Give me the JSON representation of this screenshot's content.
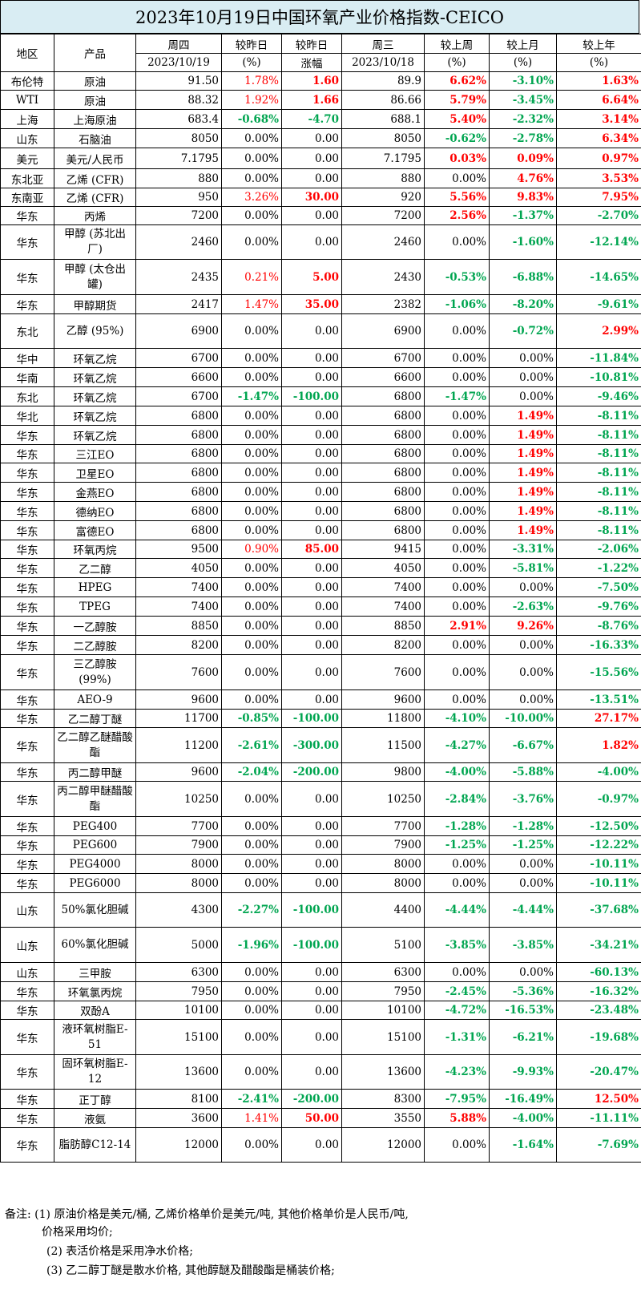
{
  "title": "2023年10月19日中国环氧产业价格指数-CEICO",
  "header": {
    "region": "地区",
    "product": "产品",
    "thu": "周四",
    "thu_date": "2023/10/19",
    "chg_pct": "较昨日",
    "chg_pct_unit": "(%)",
    "chg_abs": "较昨日",
    "chg_abs_unit": "涨幅",
    "wed": "周三",
    "wed_date": "2023/10/18",
    "week": "较上周",
    "week_unit": "(%)",
    "month": "较上月",
    "month_unit": "(%)",
    "year": "较上年",
    "year_unit": "(%)"
  },
  "rows": [
    {
      "region": "布伦特",
      "product": "原油",
      "thu": "91.50",
      "d_pct": "1.78%",
      "d_abs": "1.60",
      "wed": "89.9",
      "w": "6.62%",
      "m": "-3.10%",
      "y": "1.63%",
      "h": 23
    },
    {
      "region": "WTI",
      "product": "原油",
      "thu": "88.32",
      "d_pct": "1.92%",
      "d_abs": "1.66",
      "wed": "86.66",
      "w": "5.79%",
      "m": "-3.45%",
      "y": "6.64%",
      "h": 24
    },
    {
      "region": "上海",
      "product": "上海原油",
      "thu": "683.4",
      "d_pct": "-0.68%",
      "d_abs": "-4.70",
      "wed": "688.1",
      "w": "5.40%",
      "m": "-2.32%",
      "y": "3.14%",
      "h": 24
    },
    {
      "region": "山东",
      "product": "石脑油",
      "thu": "8050",
      "d_pct": "0.00%",
      "d_abs": "0.00",
      "wed": "8050",
      "w": "-0.62%",
      "m": "-2.78%",
      "y": "6.34%",
      "h": 24
    },
    {
      "region": "美元",
      "product": "美元/人民币",
      "thu": "7.1795",
      "d_pct": "0.00%",
      "d_abs": "0.00",
      "wed": "7.1795",
      "w": "0.03%",
      "m": "0.09%",
      "y": "0.97%",
      "h": 26
    },
    {
      "region": "东北亚",
      "product": "乙烯 (CFR)",
      "thu": "880",
      "d_pct": "0.00%",
      "d_abs": "0.00",
      "wed": "880",
      "w": "0.00%",
      "m": "4.76%",
      "y": "3.53%",
      "h": 24
    },
    {
      "region": "东南亚",
      "product": "乙烯 (CFR)",
      "thu": "950",
      "d_pct": "3.26%",
      "d_abs": "30.00",
      "wed": "920",
      "w": "5.56%",
      "m": "9.83%",
      "y": "7.95%",
      "h": 23
    },
    {
      "region": "华东",
      "product": "丙烯",
      "thu": "7200",
      "d_pct": "0.00%",
      "d_abs": "0.00",
      "wed": "7200",
      "w": "2.56%",
      "m": "-1.37%",
      "y": "-2.70%",
      "h": 23
    },
    {
      "region": "华东",
      "product": "甲醇 (苏北出厂)",
      "thu": "2460",
      "d_pct": "0.00%",
      "d_abs": "0.00",
      "wed": "2460",
      "w": "0.00%",
      "m": "-1.60%",
      "y": "-12.14%",
      "h": 43
    },
    {
      "region": "华东",
      "product": "甲醇 (太仓出罐)",
      "thu": "2435",
      "d_pct": "0.21%",
      "d_abs": "5.00",
      "wed": "2430",
      "w": "-0.53%",
      "m": "-6.88%",
      "y": "-14.65%",
      "h": 44
    },
    {
      "region": "华东",
      "product": "甲醇期货",
      "thu": "2417",
      "d_pct": "1.47%",
      "d_abs": "35.00",
      "wed": "2382",
      "w": "-1.06%",
      "m": "-8.20%",
      "y": "-9.61%",
      "h": 24
    },
    {
      "region": "东北",
      "product": "乙醇 (95%)",
      "thu": "6900",
      "d_pct": "0.00%",
      "d_abs": "0.00",
      "wed": "6900",
      "w": "0.00%",
      "m": "-0.72%",
      "y": "2.99%",
      "h": 43
    },
    {
      "region": "华中",
      "product": "环氧乙烷",
      "thu": "6700",
      "d_pct": "0.00%",
      "d_abs": "0.00",
      "wed": "6700",
      "w": "0.00%",
      "m": "0.00%",
      "y": "-11.84%",
      "h": 24
    },
    {
      "region": "华南",
      "product": "环氧乙烷",
      "thu": "6600",
      "d_pct": "0.00%",
      "d_abs": "0.00",
      "wed": "6600",
      "w": "0.00%",
      "m": "0.00%",
      "y": "-10.81%",
      "h": 24
    },
    {
      "region": "东北",
      "product": "环氧乙烷",
      "thu": "6700",
      "d_pct": "-1.47%",
      "d_abs": "-100.00",
      "wed": "6800",
      "w": "-1.47%",
      "m": "0.00%",
      "y": "-9.46%",
      "h": 24
    },
    {
      "region": "华北",
      "product": "环氧乙烷",
      "thu": "6800",
      "d_pct": "0.00%",
      "d_abs": "0.00",
      "wed": "6800",
      "w": "0.00%",
      "m": "1.49%",
      "y": "-8.11%",
      "h": 24
    },
    {
      "region": "华东",
      "product": "环氧乙烷",
      "thu": "6800",
      "d_pct": "0.00%",
      "d_abs": "0.00",
      "wed": "6800",
      "w": "0.00%",
      "m": "1.49%",
      "y": "-8.11%",
      "h": 24
    },
    {
      "region": "华东",
      "product": "三江EO",
      "thu": "6800",
      "d_pct": "0.00%",
      "d_abs": "0.00",
      "wed": "6800",
      "w": "0.00%",
      "m": "1.49%",
      "y": "-8.11%",
      "h": 23
    },
    {
      "region": "华东",
      "product": "卫星EO",
      "thu": "6800",
      "d_pct": "0.00%",
      "d_abs": "0.00",
      "wed": "6800",
      "w": "0.00%",
      "m": "1.49%",
      "y": "-8.11%",
      "h": 24
    },
    {
      "region": "华东",
      "product": "金燕EO",
      "thu": "6800",
      "d_pct": "0.00%",
      "d_abs": "0.00",
      "wed": "6800",
      "w": "0.00%",
      "m": "1.49%",
      "y": "-8.11%",
      "h": 24
    },
    {
      "region": "华东",
      "product": "德纳EO",
      "thu": "6800",
      "d_pct": "0.00%",
      "d_abs": "0.00",
      "wed": "6800",
      "w": "0.00%",
      "m": "1.49%",
      "y": "-8.11%",
      "h": 24
    },
    {
      "region": "华东",
      "product": "富德EO",
      "thu": "6800",
      "d_pct": "0.00%",
      "d_abs": "0.00",
      "wed": "6800",
      "w": "0.00%",
      "m": "1.49%",
      "y": "-8.11%",
      "h": 24
    },
    {
      "region": "华东",
      "product": "环氧丙烷",
      "thu": "9500",
      "d_pct": "0.90%",
      "d_abs": "85.00",
      "wed": "9415",
      "w": "0.00%",
      "m": "-3.31%",
      "y": "-2.06%",
      "h": 23
    },
    {
      "region": "华东",
      "product": "乙二醇",
      "thu": "4050",
      "d_pct": "0.00%",
      "d_abs": "0.00",
      "wed": "4050",
      "w": "0.00%",
      "m": "-5.81%",
      "y": "-1.22%",
      "h": 24
    },
    {
      "region": "华东",
      "product": "HPEG",
      "thu": "7400",
      "d_pct": "0.00%",
      "d_abs": "0.00",
      "wed": "7400",
      "w": "0.00%",
      "m": "0.00%",
      "y": "-7.50%",
      "h": 24
    },
    {
      "region": "华东",
      "product": "TPEG",
      "thu": "7400",
      "d_pct": "0.00%",
      "d_abs": "0.00",
      "wed": "7400",
      "w": "0.00%",
      "m": "-2.63%",
      "y": "-9.76%",
      "h": 24
    },
    {
      "region": "华东",
      "product": "一乙醇胺",
      "thu": "8850",
      "d_pct": "0.00%",
      "d_abs": "0.00",
      "wed": "8850",
      "w": "2.91%",
      "m": "9.26%",
      "y": "-8.76%",
      "h": 24
    },
    {
      "region": "华东",
      "product": "二乙醇胺",
      "thu": "8200",
      "d_pct": "0.00%",
      "d_abs": "0.00",
      "wed": "8200",
      "w": "0.00%",
      "m": "0.00%",
      "y": "-16.33%",
      "h": 24
    },
    {
      "region": "华东",
      "product": "三乙醇胺 (99%)",
      "thu": "7600",
      "d_pct": "0.00%",
      "d_abs": "0.00",
      "wed": "7600",
      "w": "0.00%",
      "m": "0.00%",
      "y": "-15.56%",
      "h": 44
    },
    {
      "region": "华东",
      "product": "AEO-9",
      "thu": "9600",
      "d_pct": "0.00%",
      "d_abs": "0.00",
      "wed": "9600",
      "w": "0.00%",
      "m": "0.00%",
      "y": "-13.51%",
      "h": 24
    },
    {
      "region": "华东",
      "product": "乙二醇丁醚",
      "thu": "11700",
      "d_pct": "-0.85%",
      "d_abs": "-100.00",
      "wed": "11800",
      "w": "-4.10%",
      "m": "-10.00%",
      "y": "27.17%",
      "h": 23
    },
    {
      "region": "华东",
      "product": "乙二醇乙醚醋酸酯",
      "thu": "11200",
      "d_pct": "-2.61%",
      "d_abs": "-300.00",
      "wed": "11500",
      "w": "-4.27%",
      "m": "-6.67%",
      "y": "1.82%",
      "h": 44
    },
    {
      "region": "华东",
      "product": "丙二醇甲醚",
      "thu": "9600",
      "d_pct": "-2.04%",
      "d_abs": "-200.00",
      "wed": "9800",
      "w": "-4.00%",
      "m": "-5.88%",
      "y": "-4.00%",
      "h": 23
    },
    {
      "region": "华东",
      "product": "丙二醇甲醚醋酸酯",
      "thu": "10250",
      "d_pct": "0.00%",
      "d_abs": "0.00",
      "wed": "10250",
      "w": "-2.84%",
      "m": "-3.76%",
      "y": "-0.97%",
      "h": 44
    },
    {
      "region": "华东",
      "product": "PEG400",
      "thu": "7700",
      "d_pct": "0.00%",
      "d_abs": "0.00",
      "wed": "7700",
      "w": "-1.28%",
      "m": "-1.28%",
      "y": "-12.50%",
      "h": 24
    },
    {
      "region": "华东",
      "product": "PEG600",
      "thu": "7900",
      "d_pct": "0.00%",
      "d_abs": "0.00",
      "wed": "7900",
      "w": "-1.25%",
      "m": "-1.25%",
      "y": "-12.22%",
      "h": 23
    },
    {
      "region": "华东",
      "product": "PEG4000",
      "thu": "8000",
      "d_pct": "0.00%",
      "d_abs": "0.00",
      "wed": "8000",
      "w": "0.00%",
      "m": "0.00%",
      "y": "-10.11%",
      "h": 24
    },
    {
      "region": "华东",
      "product": "PEG6000",
      "thu": "8000",
      "d_pct": "0.00%",
      "d_abs": "0.00",
      "wed": "8000",
      "w": "0.00%",
      "m": "0.00%",
      "y": "-10.11%",
      "h": 24
    },
    {
      "region": "山东",
      "product": "50%氯化胆碱",
      "thu": "4300",
      "d_pct": "-2.27%",
      "d_abs": "-100.00",
      "wed": "4400",
      "w": "-4.44%",
      "m": "-4.44%",
      "y": "-37.68%",
      "h": 43
    },
    {
      "region": "山东",
      "product": "60%氯化胆碱",
      "thu": "5000",
      "d_pct": "-1.96%",
      "d_abs": "-100.00",
      "wed": "5100",
      "w": "-3.85%",
      "m": "-3.85%",
      "y": "-34.21%",
      "h": 44
    },
    {
      "region": "山东",
      "product": "三甲胺",
      "thu": "6300",
      "d_pct": "0.00%",
      "d_abs": "0.00",
      "wed": "6300",
      "w": "0.00%",
      "m": "0.00%",
      "y": "-60.13%",
      "h": 24
    },
    {
      "region": "华东",
      "product": "环氧氯丙烷",
      "thu": "7950",
      "d_pct": "0.00%",
      "d_abs": "0.00",
      "wed": "7950",
      "w": "-2.45%",
      "m": "-5.36%",
      "y": "-16.32%",
      "h": 24
    },
    {
      "region": "华东",
      "product": "双酚A",
      "thu": "10100",
      "d_pct": "0.00%",
      "d_abs": "0.00",
      "wed": "10100",
      "w": "-4.72%",
      "m": "-16.53%",
      "y": "-23.48%",
      "h": 23
    },
    {
      "region": "华东",
      "product": "液环氧树脂E-51",
      "thu": "15100",
      "d_pct": "0.00%",
      "d_abs": "0.00",
      "wed": "15100",
      "w": "-1.31%",
      "m": "-6.21%",
      "y": "-19.68%",
      "h": 44
    },
    {
      "region": "华东",
      "product": "固环氧树脂E-12",
      "thu": "13600",
      "d_pct": "0.00%",
      "d_abs": "0.00",
      "wed": "13600",
      "w": "-4.23%",
      "m": "-9.93%",
      "y": "-20.47%",
      "h": 43
    },
    {
      "region": "华东",
      "product": "正丁醇",
      "thu": "8100",
      "d_pct": "-2.41%",
      "d_abs": "-200.00",
      "wed": "8300",
      "w": "-7.95%",
      "m": "-16.49%",
      "y": "12.50%",
      "h": 24
    },
    {
      "region": "华东",
      "product": "液氨",
      "thu": "3600",
      "d_pct": "1.41%",
      "d_abs": "50.00",
      "wed": "3550",
      "w": "5.88%",
      "m": "-4.00%",
      "y": "-11.11%",
      "h": 24
    },
    {
      "region": "华东",
      "product": "脂肪醇C12-14",
      "thu": "12000",
      "d_pct": "0.00%",
      "d_abs": "0.00",
      "wed": "12000",
      "w": "0.00%",
      "m": "-1.64%",
      "y": "-7.69%",
      "h": 43
    }
  ],
  "notes": {
    "n1": "备注: (1) 原油价格是美元/桶, 乙烯价格单价是美元/吨, 其他价格单价是人民币/吨,",
    "n1b": "价格采用均价;",
    "n2": "(2) 表活价格是采用净水价格;",
    "n3": "(3) 乙二醇丁醚是散水价格, 其他醇醚及醋酸酯是桶装价格;"
  },
  "colors": {
    "up": "#ff0000",
    "down": "#00a550",
    "flat": "#000000",
    "title_bg": "#d9edf3"
  }
}
